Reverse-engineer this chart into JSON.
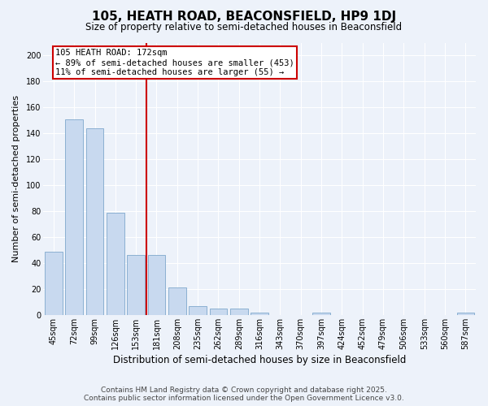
{
  "title": "105, HEATH ROAD, BEACONSFIELD, HP9 1DJ",
  "subtitle": "Size of property relative to semi-detached houses in Beaconsfield",
  "xlabel": "Distribution of semi-detached houses by size in Beaconsfield",
  "ylabel": "Number of semi-detached properties",
  "categories": [
    "45sqm",
    "72sqm",
    "99sqm",
    "126sqm",
    "153sqm",
    "181sqm",
    "208sqm",
    "235sqm",
    "262sqm",
    "289sqm",
    "316sqm",
    "343sqm",
    "370sqm",
    "397sqm",
    "424sqm",
    "452sqm",
    "479sqm",
    "506sqm",
    "533sqm",
    "560sqm",
    "587sqm"
  ],
  "values": [
    49,
    151,
    144,
    79,
    46,
    46,
    21,
    7,
    5,
    5,
    2,
    0,
    0,
    2,
    0,
    0,
    0,
    0,
    0,
    0,
    2
  ],
  "bar_color": "#c8d9ef",
  "bar_edgecolor": "#7fa8cc",
  "vline_color": "#cc0000",
  "vline_x": 4.5,
  "annotation_title": "105 HEATH ROAD: 172sqm",
  "annotation_line1": "← 89% of semi-detached houses are smaller (453)",
  "annotation_line2": "11% of semi-detached houses are larger (55) →",
  "ylim": [
    0,
    210
  ],
  "yticks": [
    0,
    20,
    40,
    60,
    80,
    100,
    120,
    140,
    160,
    180,
    200
  ],
  "footer1": "Contains HM Land Registry data © Crown copyright and database right 2025.",
  "footer2": "Contains public sector information licensed under the Open Government Licence v3.0.",
  "bg_color": "#edf2fa",
  "grid_color": "#d0daea",
  "title_fontsize": 11,
  "subtitle_fontsize": 8.5,
  "tick_fontsize": 7,
  "ylabel_fontsize": 8,
  "xlabel_fontsize": 8.5,
  "footer_fontsize": 6.5
}
